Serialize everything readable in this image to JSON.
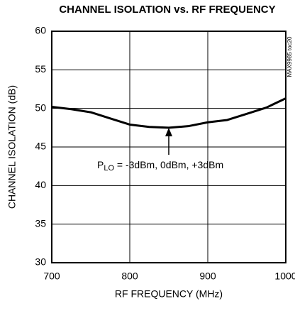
{
  "chart_data": {
    "type": "line",
    "title": "CHANNEL ISOLATION vs. RF FREQUENCY",
    "figure_id": "MAX9985 toc20",
    "x_label": "RF FREQUENCY (MHz)",
    "y_label": "CHANNEL ISOLATION (dB)",
    "annotation": [
      "P",
      "LO",
      " = -3dBm, 0dBm, +3dBm"
    ],
    "x": [
      700,
      725,
      750,
      775,
      800,
      825,
      850,
      875,
      900,
      925,
      950,
      975,
      1000
    ],
    "series": [
      {
        "color": "#000000",
        "values": [
          50.2,
          49.9,
          49.5,
          48.7,
          47.9,
          47.6,
          47.5,
          47.7,
          48.2,
          48.5,
          49.3,
          50.1,
          51.3
        ]
      }
    ],
    "xlim": [
      700,
      1000
    ],
    "xticks": [
      700,
      800,
      900,
      1000
    ],
    "ylim": [
      30,
      60
    ],
    "yticks": [
      30,
      35,
      40,
      45,
      50,
      55,
      60
    ],
    "grid": true
  }
}
